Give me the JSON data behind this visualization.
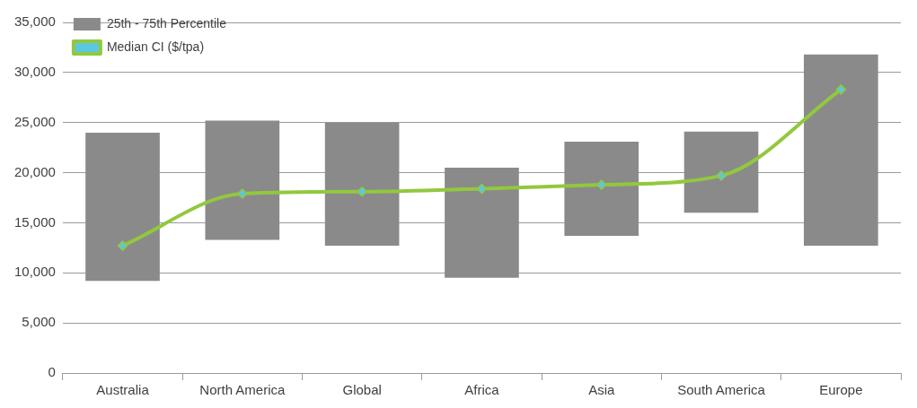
{
  "chart_data": {
    "type": "bar",
    "categories": [
      "Australia",
      "North America",
      "Global",
      "Africa",
      "Asia",
      "South America",
      "Europe"
    ],
    "series": [
      {
        "name": "25th - 75th Percentile",
        "color": "#8a8a8a",
        "base": [
          9200,
          13300,
          12700,
          9500,
          13700,
          16000,
          12700
        ],
        "values": [
          14800,
          11900,
          12300,
          11000,
          9400,
          8100,
          19100
        ]
      },
      {
        "name": "Median CI ($/tpa)",
        "type": "line",
        "color": "#92c83e",
        "values": [
          12700,
          17900,
          18100,
          18400,
          18800,
          19700,
          28300
        ]
      }
    ],
    "ylim": [
      0,
      35000
    ],
    "yticks": [
      0,
      {
        "value": 5000,
        "label": "5,000"
      },
      {
        "value": 10000,
        "label": "10,000"
      },
      {
        "value": 15000,
        "label": "15,000"
      },
      {
        "value": 20000,
        "label": "20,000"
      },
      {
        "value": 25000,
        "label": "25,000"
      },
      {
        "value": 30000,
        "label": "30,000"
      },
      {
        "value": 35000,
        "label": "35,000"
      }
    ],
    "grid": "y",
    "legend": "top left",
    "marker": "diamond",
    "line_style": "solid"
  }
}
